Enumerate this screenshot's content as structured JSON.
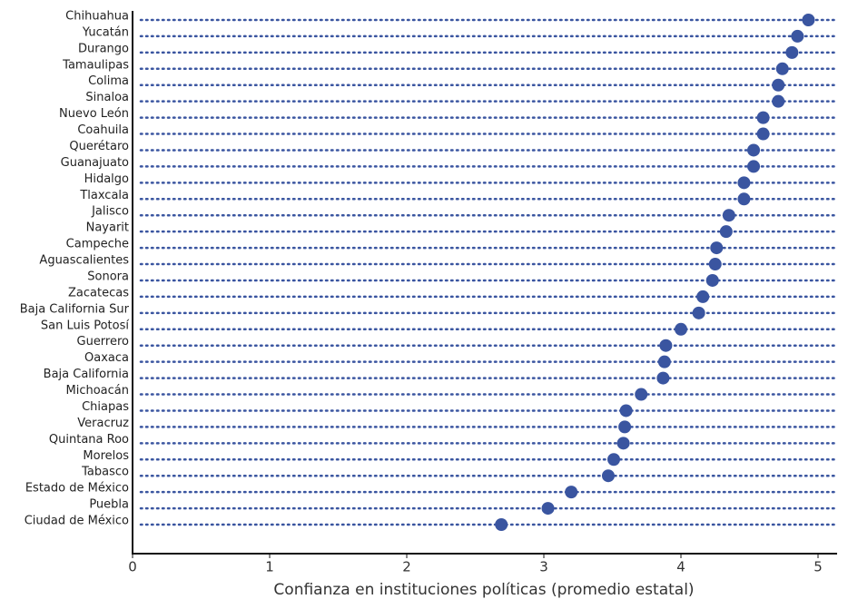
{
  "chart_data": {
    "type": "dot",
    "x_label": "Confianza en instituciones políticas (promedio estatal)",
    "categories": [
      "Chihuahua",
      "Yucatán",
      "Durango",
      "Tamaulipas",
      "Colima",
      "Sinaloa",
      "Nuevo León",
      "Coahuila",
      "Querétaro",
      "Guanajuato",
      "Hidalgo",
      "Tlaxcala",
      "Jalisco",
      "Nayarit",
      "Campeche",
      "Aguascalientes",
      "Sonora",
      "Zacatecas",
      "Baja California Sur",
      "San Luis Potosí",
      "Guerrero",
      "Oaxaca",
      "Baja California",
      "Michoacán",
      "Chiapas",
      "Veracruz",
      "Quintana Roo",
      "Morelos",
      "Tabasco",
      "Estado de México",
      "Puebla",
      "Ciudad de México"
    ],
    "values": [
      4.93,
      4.85,
      4.81,
      4.74,
      4.71,
      4.71,
      4.6,
      4.6,
      4.53,
      4.53,
      4.46,
      4.46,
      4.35,
      4.33,
      4.26,
      4.25,
      4.23,
      4.16,
      4.13,
      4.0,
      3.89,
      3.88,
      3.87,
      3.71,
      3.6,
      3.59,
      3.58,
      3.51,
      3.47,
      3.2,
      3.03,
      2.69
    ],
    "color": "#3a55a0",
    "xlim": [
      0,
      5
    ],
    "xticks": [
      0,
      1,
      2,
      3,
      4,
      5
    ]
  }
}
